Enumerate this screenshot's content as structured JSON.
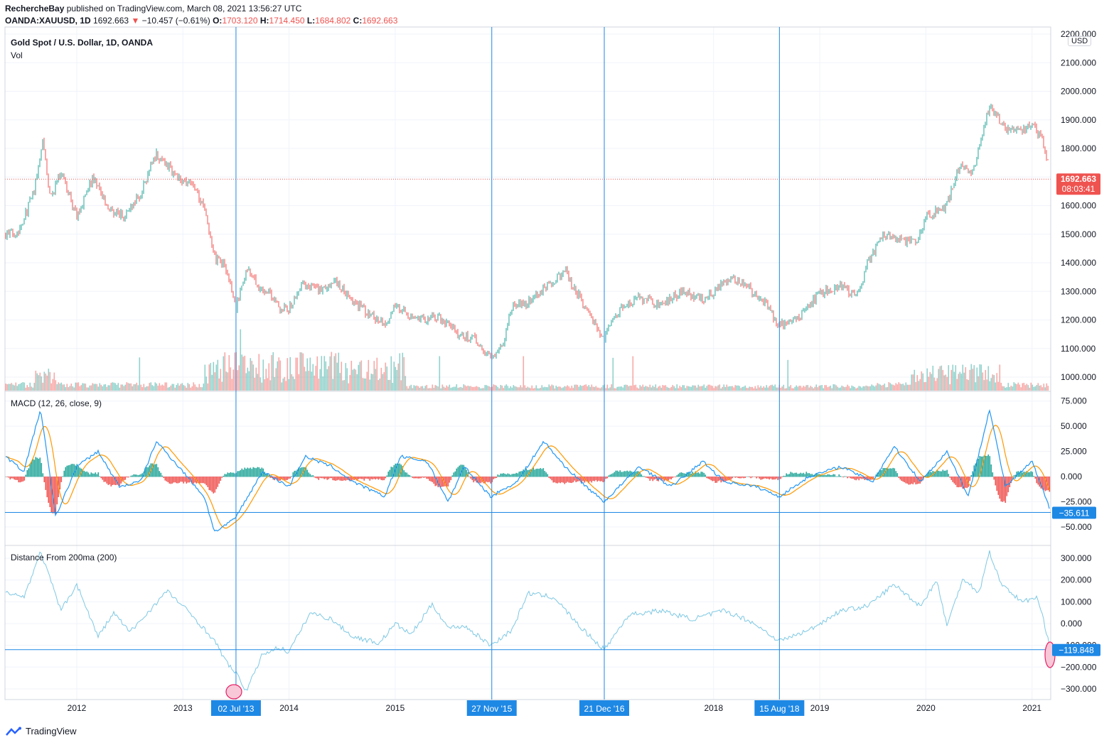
{
  "header": {
    "author": "RechercheBay",
    "published_text": "published on TradingView.com, March 08, 2021 13:56:27 UTC",
    "symbol": "OANDA:XAUUSD, 1D",
    "last": "1692.663",
    "change": "−10.457 (−0.61%)",
    "o_label": "O:",
    "o_value": "1703.120",
    "h_label": "H:",
    "h_value": "1714.450",
    "l_label": "L:",
    "l_value": "1684.802",
    "c_label": "C:",
    "c_value": "1692.663"
  },
  "panes": {
    "price_title": "Gold Spot / U.S. Dollar, 1D, OANDA",
    "vol_label": "Vol",
    "macd_title": "MACD (12, 26, close, 9)",
    "dist_title": "Distance From 200ma (200)",
    "currency_badge": "USD"
  },
  "price_badge": {
    "value": "1692.663",
    "countdown": "08:03:41"
  },
  "macd_badge": "−35.611",
  "dist_badge": "−119.848",
  "colors": {
    "up": "#26a69a",
    "down": "#ef5350",
    "macd": "#2196f3",
    "signal": "#ff9800",
    "dist": "#7ec8e3",
    "crosshair": "#1e88e5",
    "marker_fill": "#f8c8d8",
    "marker_stroke": "#e91e63"
  },
  "footer": {
    "brand": "TradingView"
  },
  "chart_data": [
    {
      "type": "candlestick",
      "title": "Gold Spot / U.S. Dollar, 1D, OANDA",
      "x_ticks": [
        "2012",
        "2013",
        "2014",
        "2015",
        "2018",
        "2019",
        "2020",
        "2021"
      ],
      "y_ticks": [
        "1000.000",
        "1100.000",
        "1200.000",
        "1300.000",
        "1400.000",
        "1500.000",
        "1600.000",
        "1700.000",
        "1800.000",
        "1900.000",
        "2000.000",
        "2100.000",
        "2200.000"
      ],
      "ylim": [
        960,
        2200
      ],
      "last_price": 1692.663,
      "series": [
        {
          "name": "Close",
          "x": [
            2011.33,
            2011.45,
            2011.6,
            2011.68,
            2011.75,
            2011.85,
            2012.0,
            2012.15,
            2012.3,
            2012.45,
            2012.6,
            2012.75,
            2012.9,
            2013.0,
            2013.1,
            2013.2,
            2013.3,
            2013.4,
            2013.5,
            2013.6,
            2013.7,
            2013.8,
            2013.9,
            2014.0,
            2014.15,
            2014.3,
            2014.45,
            2014.6,
            2014.75,
            2014.9,
            2015.0,
            2015.1,
            2015.25,
            2015.4,
            2015.6,
            2015.75,
            2015.9,
            2016.0,
            2016.1,
            2016.25,
            2016.5,
            2016.6,
            2016.75,
            2016.9,
            2016.97,
            2017.1,
            2017.3,
            2017.5,
            2017.7,
            2017.9,
            2018.1,
            2018.25,
            2018.4,
            2018.5,
            2018.62,
            2018.8,
            2019.0,
            2019.2,
            2019.35,
            2019.45,
            2019.6,
            2019.75,
            2019.9,
            2020.0,
            2020.1,
            2020.2,
            2020.3,
            2020.45,
            2020.6,
            2020.75,
            2020.9,
            2021.0,
            2021.1,
            2021.18
          ],
          "values": [
            1500,
            1510,
            1650,
            1840,
            1620,
            1720,
            1560,
            1700,
            1590,
            1560,
            1640,
            1780,
            1720,
            1690,
            1670,
            1590,
            1420,
            1390,
            1240,
            1380,
            1320,
            1300,
            1240,
            1240,
            1330,
            1300,
            1330,
            1270,
            1220,
            1190,
            1250,
            1220,
            1200,
            1210,
            1150,
            1130,
            1070,
            1100,
            1250,
            1260,
            1340,
            1370,
            1270,
            1170,
            1140,
            1230,
            1280,
            1250,
            1300,
            1270,
            1330,
            1340,
            1290,
            1250,
            1180,
            1210,
            1290,
            1320,
            1280,
            1400,
            1500,
            1480,
            1470,
            1560,
            1580,
            1600,
            1730,
            1720,
            1950,
            1870,
            1860,
            1890,
            1830,
            1692.663
          ]
        }
      ]
    },
    {
      "type": "line",
      "title": "MACD (12, 26, close, 9)",
      "y_ticks": [
        "75.000",
        "50.000",
        "25.000",
        "0.000",
        "−25.000",
        "−50.000"
      ],
      "ylim": [
        -60,
        80
      ],
      "last_value": -35.611,
      "series": [
        {
          "name": "MACD",
          "x": [
            2011.33,
            2011.5,
            2011.66,
            2011.8,
            2012.0,
            2012.2,
            2012.4,
            2012.6,
            2012.75,
            2013.0,
            2013.2,
            2013.3,
            2013.45,
            2013.5,
            2013.75,
            2014.0,
            2014.15,
            2014.4,
            2014.6,
            2014.9,
            2015.05,
            2015.3,
            2015.5,
            2015.65,
            2015.9,
            2016.15,
            2016.4,
            2016.6,
            2016.8,
            2016.97,
            2017.3,
            2017.6,
            2017.9,
            2018.1,
            2018.4,
            2018.62,
            2018.9,
            2019.2,
            2019.5,
            2019.7,
            2019.95,
            2020.2,
            2020.4,
            2020.6,
            2020.75,
            2021.0,
            2021.18
          ],
          "values": [
            20,
            5,
            67,
            -40,
            10,
            25,
            -10,
            -5,
            35,
            5,
            -20,
            -55,
            -45,
            -40,
            5,
            -10,
            20,
            10,
            -5,
            -20,
            20,
            15,
            -25,
            10,
            -20,
            -5,
            35,
            10,
            -10,
            -25,
            10,
            -10,
            15,
            -5,
            -10,
            -20,
            0,
            10,
            -5,
            30,
            -5,
            25,
            -20,
            67,
            -10,
            15,
            -35.611
          ]
        }
      ]
    },
    {
      "type": "line",
      "title": "Distance From 200ma (200)",
      "y_ticks": [
        "300.000",
        "200.000",
        "100.000",
        "0.000",
        "−100.000",
        "−200.000",
        "−300.000"
      ],
      "ylim": [
        -350,
        360
      ],
      "last_value": -119.848,
      "series": [
        {
          "name": "Distance From 200ma",
          "x": [
            2011.33,
            2011.5,
            2011.66,
            2011.85,
            2012.0,
            2012.2,
            2012.35,
            2012.5,
            2012.65,
            2012.85,
            2013.0,
            2013.1,
            2013.3,
            2013.4,
            2013.5,
            2013.6,
            2013.75,
            2013.9,
            2014.0,
            2014.2,
            2014.4,
            2014.6,
            2014.85,
            2015.0,
            2015.15,
            2015.35,
            2015.5,
            2015.65,
            2015.9,
            2016.1,
            2016.25,
            2016.5,
            2016.75,
            2016.97,
            2017.2,
            2017.5,
            2017.8,
            2018.1,
            2018.35,
            2018.62,
            2018.9,
            2019.2,
            2019.45,
            2019.7,
            2019.95,
            2020.1,
            2020.2,
            2020.35,
            2020.5,
            2020.6,
            2020.7,
            2020.9,
            2021.05,
            2021.18
          ],
          "values": [
            150,
            120,
            330,
            60,
            180,
            -60,
            50,
            -40,
            40,
            150,
            80,
            30,
            -80,
            -170,
            -230,
            -310,
            -140,
            -110,
            -130,
            50,
            20,
            -60,
            -90,
            0,
            -50,
            90,
            -20,
            -10,
            -100,
            -30,
            140,
            120,
            -20,
            -120,
            40,
            60,
            20,
            60,
            10,
            -80,
            -30,
            60,
            80,
            180,
            80,
            200,
            -10,
            210,
            140,
            330,
            190,
            100,
            120,
            -119.848
          ]
        }
      ]
    }
  ],
  "axes": {
    "x_labels": [
      {
        "text": "2012",
        "year": 2012.0
      },
      {
        "text": "2013",
        "year": 2013.0
      },
      {
        "text": "2014",
        "year": 2014.0
      },
      {
        "text": "2015",
        "year": 2015.0
      },
      {
        "text": "2018",
        "year": 2018.0
      },
      {
        "text": "2019",
        "year": 2019.0
      },
      {
        "text": "2020",
        "year": 2020.0
      },
      {
        "text": "2021",
        "year": 2021.0
      }
    ],
    "date_markers": [
      {
        "text": "02 Jul '13",
        "year": 2013.5
      },
      {
        "text": "27 Nov '15",
        "year": 2015.91
      },
      {
        "text": "21 Dec '16",
        "year": 2016.97
      },
      {
        "text": "15 Aug '18",
        "year": 2018.62
      }
    ]
  }
}
